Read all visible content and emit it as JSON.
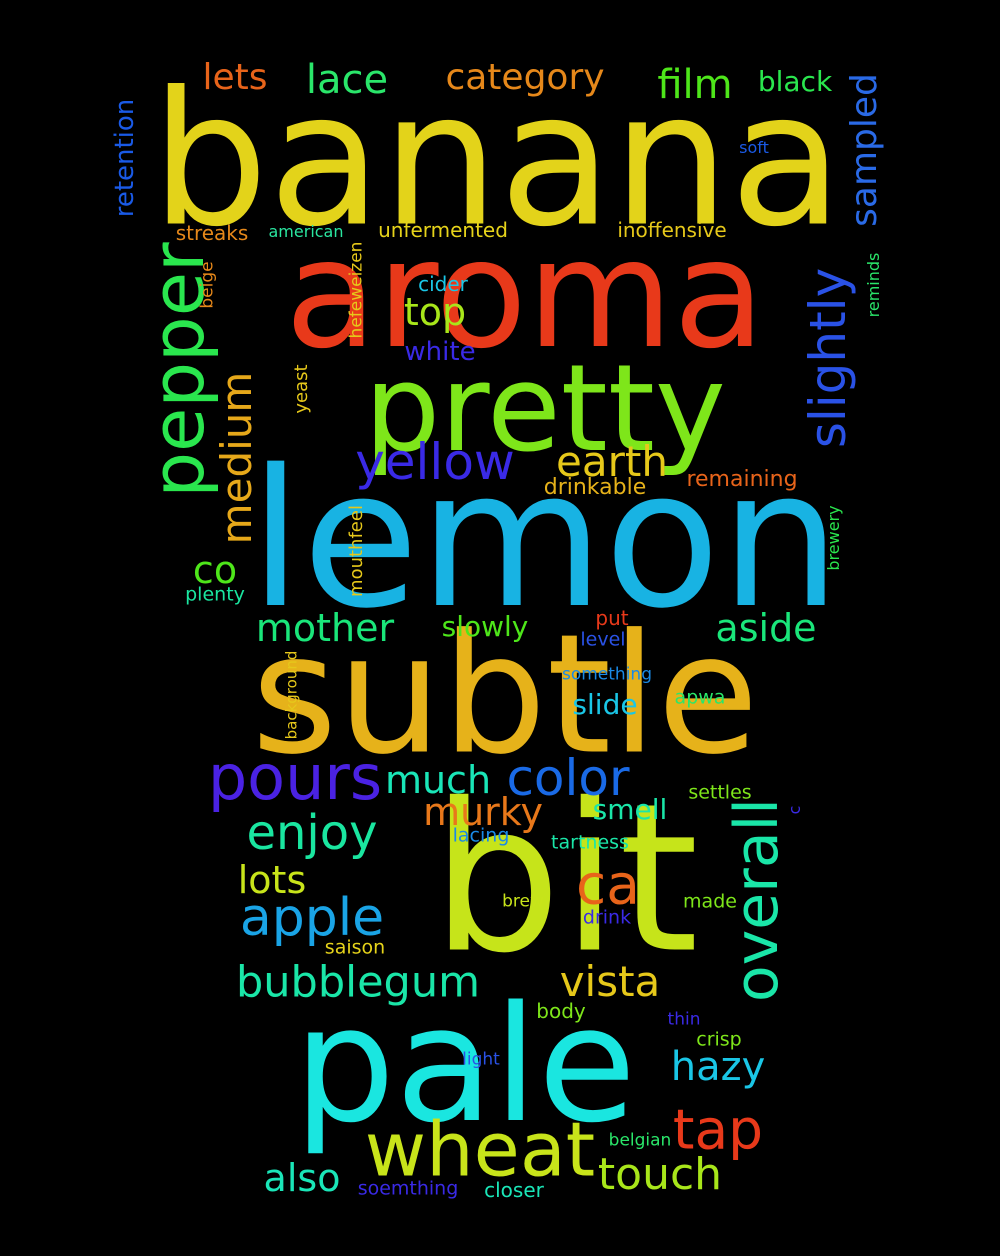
{
  "words": [
    {
      "text": "banana",
      "color": "#e3d31a",
      "orientation": "horizontal"
    },
    {
      "text": "aroma",
      "color": "#e8391a",
      "orientation": "horizontal"
    },
    {
      "text": "lemon",
      "color": "#18b3e3",
      "orientation": "horizontal"
    },
    {
      "text": "subtle",
      "color": "#e6b21a",
      "orientation": "horizontal"
    },
    {
      "text": "bit",
      "color": "#c6e41a",
      "orientation": "horizontal"
    },
    {
      "text": "pale",
      "color": "#1ae6e0",
      "orientation": "horizontal"
    },
    {
      "text": "pretty",
      "color": "#7ee61a",
      "orientation": "horizontal"
    },
    {
      "text": "wheat",
      "color": "#c8e41a",
      "orientation": "horizontal"
    },
    {
      "text": "pepper",
      "color": "#2ae64e",
      "orientation": "vertical"
    },
    {
      "text": "pours",
      "color": "#4a22e3",
      "orientation": "horizontal"
    },
    {
      "text": "yellow",
      "color": "#3a2ae6",
      "orientation": "horizontal"
    },
    {
      "text": "overall",
      "color": "#1ae6a8",
      "orientation": "vertical"
    },
    {
      "text": "color",
      "color": "#1a6ae6",
      "orientation": "horizontal"
    },
    {
      "text": "slightly",
      "color": "#2a52e6",
      "orientation": "vertical"
    },
    {
      "text": "apple",
      "color": "#1aa4e6",
      "orientation": "horizontal"
    },
    {
      "text": "enjoy",
      "color": "#1ae6a0",
      "orientation": "horizontal"
    },
    {
      "text": "tap",
      "color": "#e8391a",
      "orientation": "horizontal"
    },
    {
      "text": "ca",
      "color": "#e8641a",
      "orientation": "horizontal"
    },
    {
      "text": "medium",
      "color": "#e6a81a",
      "orientation": "vertical"
    },
    {
      "text": "bubblegum",
      "color": "#1ae6a8",
      "orientation": "horizontal"
    },
    {
      "text": "vista",
      "color": "#e6c81a",
      "orientation": "horizontal"
    },
    {
      "text": "touch",
      "color": "#a8e61a",
      "orientation": "horizontal"
    },
    {
      "text": "murky",
      "color": "#e8781a",
      "orientation": "horizontal"
    },
    {
      "text": "hazy",
      "color": "#1ac6e6",
      "orientation": "horizontal"
    },
    {
      "text": "earth",
      "color": "#e6c81a",
      "orientation": "horizontal"
    },
    {
      "text": "film",
      "color": "#4ee61a",
      "orientation": "horizontal"
    },
    {
      "text": "lace",
      "color": "#2ae66a",
      "orientation": "horizontal"
    },
    {
      "text": "category",
      "color": "#e6881a",
      "orientation": "horizontal"
    },
    {
      "text": "lets",
      "color": "#e8641a",
      "orientation": "horizontal"
    },
    {
      "text": "mother",
      "color": "#1ae67a",
      "orientation": "horizontal"
    },
    {
      "text": "aside",
      "color": "#1ae67a",
      "orientation": "horizontal"
    },
    {
      "text": "much",
      "color": "#1ae6b8",
      "orientation": "horizontal"
    },
    {
      "text": "sampled",
      "color": "#2a6ae6",
      "orientation": "vertical"
    },
    {
      "text": "top",
      "color": "#a8e61a",
      "orientation": "horizontal"
    },
    {
      "text": "lots",
      "color": "#c8e41a",
      "orientation": "horizontal"
    },
    {
      "text": "also",
      "color": "#1ae6b8",
      "orientation": "horizontal"
    },
    {
      "text": "co",
      "color": "#4ee61a",
      "orientation": "horizontal"
    },
    {
      "text": "black",
      "color": "#2ae64e",
      "orientation": "horizontal"
    },
    {
      "text": "retention",
      "color": "#1a5ae6",
      "orientation": "vertical"
    },
    {
      "text": "slowly",
      "color": "#4ee61a",
      "orientation": "horizontal"
    },
    {
      "text": "smell",
      "color": "#1ae6a8",
      "orientation": "horizontal"
    },
    {
      "text": "slide",
      "color": "#1ac6e6",
      "orientation": "horizontal"
    },
    {
      "text": "white",
      "color": "#3a2ae6",
      "orientation": "horizontal"
    },
    {
      "text": "drinkable",
      "color": "#e6b21a",
      "orientation": "horizontal"
    },
    {
      "text": "remaining",
      "color": "#e8641a",
      "orientation": "horizontal"
    },
    {
      "text": "inoffensive",
      "color": "#e6c81a",
      "orientation": "horizontal"
    },
    {
      "text": "unfermented",
      "color": "#e6d31a",
      "orientation": "horizontal"
    },
    {
      "text": "streaks",
      "color": "#e6881a",
      "orientation": "horizontal"
    },
    {
      "text": "american",
      "color": "#2ae6a0",
      "orientation": "horizontal"
    },
    {
      "text": "soft",
      "color": "#1a5ae6",
      "orientation": "horizontal"
    },
    {
      "text": "cider",
      "color": "#1ac6e6",
      "orientation": "horizontal"
    },
    {
      "text": "hefeweizen",
      "color": "#e6c81a",
      "orientation": "vertical"
    },
    {
      "text": "beige",
      "color": "#e6881a",
      "orientation": "vertical"
    },
    {
      "text": "yeast",
      "color": "#e6c81a",
      "orientation": "vertical"
    },
    {
      "text": "mouthfeel",
      "color": "#e6c81a",
      "orientation": "vertical"
    },
    {
      "text": "plenty",
      "color": "#1ae6a0",
      "orientation": "horizontal"
    },
    {
      "text": "reminds",
      "color": "#2ae66a",
      "orientation": "vertical"
    },
    {
      "text": "brewery",
      "color": "#2ae64e",
      "orientation": "vertical"
    },
    {
      "text": "background",
      "color": "#e6c81a",
      "orientation": "vertical"
    },
    {
      "text": "put",
      "color": "#e8391a",
      "orientation": "horizontal"
    },
    {
      "text": "level",
      "color": "#2a52e6",
      "orientation": "horizontal"
    },
    {
      "text": "something",
      "color": "#1a8ae6",
      "orientation": "horizontal"
    },
    {
      "text": "apwa",
      "color": "#2ae66a",
      "orientation": "horizontal"
    },
    {
      "text": "settles",
      "color": "#7ee61a",
      "orientation": "horizontal"
    },
    {
      "text": "c",
      "color": "#3a2ae6",
      "orientation": "vertical"
    },
    {
      "text": "lacing",
      "color": "#1a8ae6",
      "orientation": "horizontal"
    },
    {
      "text": "tartness",
      "color": "#1ae6a8",
      "orientation": "horizontal"
    },
    {
      "text": "brew",
      "color": "#c8e41a",
      "orientation": "horizontal"
    },
    {
      "text": "drink",
      "color": "#3a2ae6",
      "orientation": "horizontal"
    },
    {
      "text": "made",
      "color": "#7ee61a",
      "orientation": "horizontal"
    },
    {
      "text": "saison",
      "color": "#e6d31a",
      "orientation": "horizontal"
    },
    {
      "text": "body",
      "color": "#7ee61a",
      "orientation": "horizontal"
    },
    {
      "text": "thin",
      "color": "#3a2ae6",
      "orientation": "horizontal"
    },
    {
      "text": "crisp",
      "color": "#7ee61a",
      "orientation": "horizontal"
    },
    {
      "text": "light",
      "color": "#2a52e6",
      "orientation": "horizontal"
    },
    {
      "text": "belgian",
      "color": "#2ae66a",
      "orientation": "horizontal"
    },
    {
      "text": "soemthing",
      "color": "#3a2ae6",
      "orientation": "horizontal"
    },
    {
      "text": "closer",
      "color": "#1ae6b8",
      "orientation": "horizontal"
    }
  ]
}
